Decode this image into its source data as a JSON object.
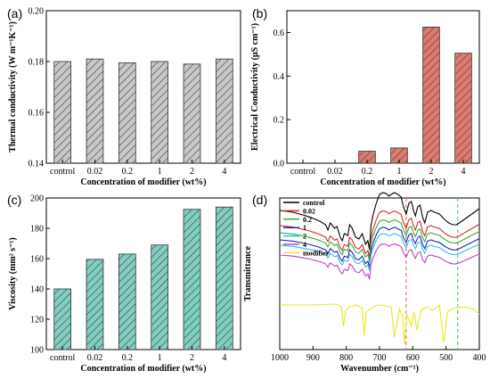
{
  "chart_data": [
    {
      "panel_label": "(a)",
      "type": "bar",
      "categories": [
        "control",
        "0.02",
        "0.2",
        "1",
        "2",
        "4"
      ],
      "values": [
        0.18,
        0.181,
        0.1795,
        0.18,
        0.179,
        0.181
      ],
      "xlabel": "Concentration of modifier (wt%)",
      "ylabel": "Thermal conductivity (W m⁻¹K⁻¹)",
      "ylim": [
        0.14,
        0.2
      ],
      "yticks": [
        "0.14",
        "0.16",
        "0.18",
        "0.20"
      ],
      "bar_color": "#c8c8c8",
      "hatch": "diagonal"
    },
    {
      "panel_label": "(b)",
      "type": "bar",
      "categories": [
        "control",
        "0.02",
        "0.2",
        "1",
        "2",
        "4"
      ],
      "values": [
        0,
        0,
        0.055,
        0.07,
        0.625,
        0.505
      ],
      "xlabel": "Concentration of modifier (wt%)",
      "ylabel": "Electrical Conductivity (μS cm⁻¹)",
      "ylim": [
        0,
        0.7
      ],
      "yticks": [
        "0.0",
        "0.2",
        "0.4",
        "0.6"
      ],
      "bar_color": "#e07a6e",
      "hatch": "diagonal"
    },
    {
      "panel_label": "(c)",
      "type": "bar",
      "categories": [
        "control",
        "0.02",
        "0.2",
        "1",
        "2",
        "4"
      ],
      "values": [
        140,
        159.5,
        163,
        169,
        192.5,
        194
      ],
      "xlabel": "Concentration of modifier (wt%)",
      "ylabel": "Viscosity (mm² s⁻¹)",
      "ylim": [
        100,
        200
      ],
      "yticks": [
        "100",
        "120",
        "140",
        "160",
        "180",
        "200"
      ],
      "bar_color": "#7fcfc2",
      "hatch": "diagonal"
    },
    {
      "panel_label": "(d)",
      "type": "line",
      "xlabel": "Wavenumber (cm⁻¹)",
      "ylabel": "Transmittance",
      "xlim": [
        1000,
        400
      ],
      "x_reversed": true,
      "xticks": [
        "1000",
        "900",
        "800",
        "700",
        "600",
        "500",
        "400"
      ],
      "reference_lines": [
        {
          "x": 620,
          "color": "#e06060"
        },
        {
          "x": 465,
          "color": "#40c040"
        }
      ],
      "series": [
        {
          "name": "control",
          "color": "#000000"
        },
        {
          "name": "0.02",
          "color": "#d03030"
        },
        {
          "name": "0.2",
          "color": "#30b030"
        },
        {
          "name": "1",
          "color": "#2020c0"
        },
        {
          "name": "2",
          "color": "#30c0e0"
        },
        {
          "name": "4",
          "color": "#c040c0"
        },
        {
          "name": "modifier",
          "color": "#e8e820"
        }
      ]
    }
  ]
}
